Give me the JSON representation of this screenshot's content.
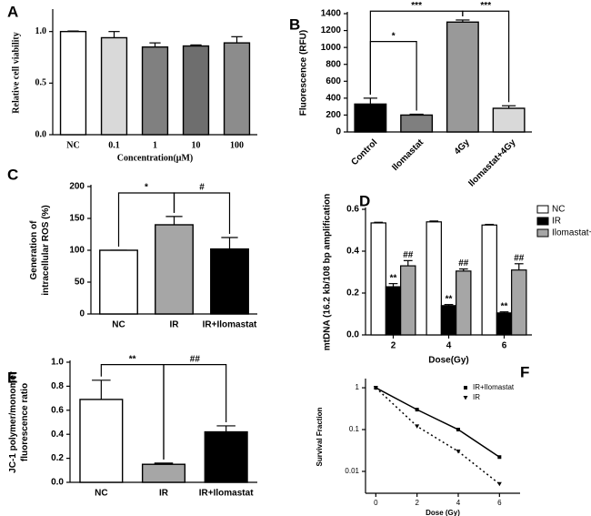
{
  "chart_data": [
    {
      "type": "bar",
      "panel": "A",
      "categories": [
        "NC",
        "0.1",
        "1",
        "10",
        "100"
      ],
      "values": [
        1.0,
        0.94,
        0.85,
        0.86,
        0.89
      ],
      "errors": [
        0.005,
        0.06,
        0.04,
        0.01,
        0.06
      ],
      "colors": [
        "#ffffff",
        "#d9d9d9",
        "#808080",
        "#6e6e6e",
        "#8c8c8c"
      ],
      "ylim": [
        0,
        1.2
      ],
      "yticks": [
        {
          "value": 0,
          "label": "0.0"
        },
        0.5,
        {
          "value": 1,
          "label": "1.0"
        }
      ],
      "x_label": "Concentration(μM)",
      "y_label": [
        "Relative cell viability"
      ]
    },
    {
      "type": "bar",
      "panel": "B",
      "categories": [
        "Control",
        "Ilomastat",
        "4Gy",
        "Ilomastat+4Gy"
      ],
      "values": [
        330,
        200,
        1300,
        280
      ],
      "errors": [
        70,
        10,
        25,
        30
      ],
      "colors": [
        "#000000",
        "#7f7f7f",
        "#999999",
        "#d9d9d9"
      ],
      "ylim": [
        0,
        1400
      ],
      "yticks": [
        0,
        200,
        400,
        600,
        800,
        1000,
        1200,
        1400
      ],
      "y_label": [
        "Fluorescence (RFU)"
      ],
      "annotations": [
        "*",
        "***",
        "***"
      ]
    },
    {
      "type": "bar",
      "panel": "C",
      "categories": [
        "NC",
        "IR",
        "IR+Ilomastat"
      ],
      "values": [
        100,
        140,
        102
      ],
      "errors": [
        0,
        13,
        18
      ],
      "colors": [
        "#ffffff",
        "#a6a6a6",
        "#000000"
      ],
      "ylim": [
        0,
        200
      ],
      "yticks": [
        0,
        50,
        100,
        150,
        200
      ],
      "y_label": [
        "Generation of",
        "intracellular ROS (%)"
      ],
      "annotations": [
        "*",
        "#"
      ]
    },
    {
      "type": "grouped-bar",
      "panel": "D",
      "categories": [
        "2",
        "4",
        "6"
      ],
      "series": [
        {
          "name": "NC",
          "color": "#ffffff",
          "values": [
            0.535,
            0.54,
            0.525
          ],
          "errors": [
            0.003,
            0.004,
            0.003
          ]
        },
        {
          "name": "IR",
          "color": "#000000",
          "values": [
            0.23,
            0.14,
            0.105
          ],
          "errors": [
            0.015,
            0.005,
            0.005
          ],
          "annotations": [
            "**",
            "**",
            "**"
          ]
        },
        {
          "name": "Ilomastat+IR",
          "color": "#a6a6a6",
          "values": [
            0.33,
            0.305,
            0.31
          ],
          "errors": [
            0.025,
            0.01,
            0.03
          ],
          "annotations": [
            "##",
            "##",
            "##"
          ]
        }
      ],
      "ylim": [
        0,
        0.6
      ],
      "yticks": [
        {
          "value": 0,
          "label": "0.0"
        },
        0.2,
        0.4,
        0.6
      ],
      "x_label": "Dose(Gy)",
      "y_label": [
        "mtDNA (16.2 kb/108 bp amplification"
      ],
      "legend": "right"
    },
    {
      "type": "bar",
      "panel": "E",
      "categories": [
        "NC",
        "IR",
        "IR+Ilomastat"
      ],
      "values": [
        0.69,
        0.15,
        0.42
      ],
      "errors": [
        0.16,
        0.01,
        0.05
      ],
      "colors": [
        "#ffffff",
        "#a6a6a6",
        "#000000"
      ],
      "ylim": [
        0,
        1.0
      ],
      "yticks": [
        {
          "value": 0,
          "label": "0.0"
        },
        0.2,
        0.4,
        0.6,
        0.8,
        {
          "value": 1,
          "label": "1.0"
        }
      ],
      "y_label": [
        "JC-1 polymer/monomer",
        "fluorescence ratio"
      ],
      "annotations": [
        "**",
        "##"
      ]
    },
    {
      "type": "line",
      "panel": "F",
      "x": [
        0,
        2,
        4,
        6
      ],
      "series": [
        {
          "name": "IR+Ilomastat",
          "color": "#000000",
          "dash": "solid",
          "marker": "square",
          "values": [
            1,
            0.3,
            0.1,
            0.022
          ]
        },
        {
          "name": "IR",
          "color": "#000000",
          "dash": "dotted",
          "marker": "triangle",
          "values": [
            1,
            0.12,
            0.03,
            0.005
          ]
        }
      ],
      "log_y": true,
      "xlim": [
        -0.5,
        7
      ],
      "xticks": [
        0,
        2,
        4,
        6
      ],
      "ylim": [
        0.003,
        1.5
      ],
      "yticks": [
        0.01,
        0.1,
        1
      ],
      "x_label": "Dose (Gy)",
      "y_label": [
        "Survival Fraction"
      ],
      "legend": "upper-right"
    }
  ]
}
